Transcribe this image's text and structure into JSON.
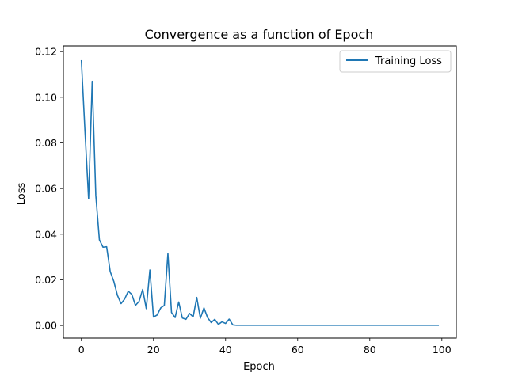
{
  "chart_data": {
    "type": "line",
    "title": "Convergence as a function of Epoch",
    "xlabel": "Epoch",
    "ylabel": "Loss",
    "xlim": [
      -5,
      104
    ],
    "ylim": [
      -0.0055,
      0.1225
    ],
    "xticks": [
      0,
      20,
      40,
      60,
      80,
      100
    ],
    "xtick_labels": [
      "0",
      "20",
      "40",
      "60",
      "80",
      "100"
    ],
    "yticks": [
      0.0,
      0.02,
      0.04,
      0.06,
      0.08,
      0.1,
      0.12
    ],
    "ytick_labels": [
      "0.00",
      "0.02",
      "0.04",
      "0.06",
      "0.08",
      "0.10",
      "0.12"
    ],
    "grid": false,
    "legend": "top-right",
    "series": [
      {
        "name": "Training Loss",
        "color": "#1f77b4",
        "x": [
          0,
          1,
          2,
          3,
          4,
          5,
          6,
          7,
          8,
          9,
          10,
          11,
          12,
          13,
          14,
          15,
          16,
          17,
          18,
          19,
          20,
          21,
          22,
          23,
          24,
          25,
          26,
          27,
          28,
          29,
          30,
          31,
          32,
          33,
          34,
          35,
          36,
          37,
          38,
          39,
          40,
          41,
          42,
          43,
          44,
          45,
          46,
          47,
          48,
          49,
          50,
          51,
          52,
          53,
          54,
          55,
          56,
          57,
          58,
          59,
          60,
          61,
          62,
          63,
          64,
          65,
          66,
          67,
          68,
          69,
          70,
          71,
          72,
          73,
          74,
          75,
          76,
          77,
          78,
          79,
          80,
          81,
          82,
          83,
          84,
          85,
          86,
          87,
          88,
          89,
          90,
          91,
          92,
          93,
          94,
          95,
          96,
          97,
          98,
          99
        ],
        "y": [
          0.116,
          0.085,
          0.0555,
          0.107,
          0.057,
          0.0375,
          0.0343,
          0.0345,
          0.0236,
          0.0193,
          0.0132,
          0.0096,
          0.0116,
          0.015,
          0.0136,
          0.0088,
          0.0106,
          0.0158,
          0.0074,
          0.0243,
          0.0037,
          0.0046,
          0.0077,
          0.0088,
          0.0315,
          0.0057,
          0.0035,
          0.0103,
          0.0033,
          0.0027,
          0.0053,
          0.0038,
          0.0123,
          0.0032,
          0.0077,
          0.0035,
          0.0013,
          0.0027,
          0.0005,
          0.0016,
          0.0009,
          0.0028,
          0.0003,
          0.0001,
          0.0001,
          0.0001,
          0.0001,
          0.0001,
          0.0001,
          0.0001,
          0.0001,
          0.0001,
          0.0001,
          0.0001,
          0.0001,
          0.0001,
          0.0001,
          0.0001,
          0.0001,
          0.0001,
          0.0001,
          0.0001,
          0.0001,
          0.0001,
          0.0001,
          0.0001,
          0.0001,
          0.0001,
          0.0001,
          0.0001,
          0.0001,
          0.0001,
          0.0001,
          0.0001,
          0.0001,
          0.0001,
          0.0001,
          0.0001,
          0.0001,
          0.0001,
          0.0001,
          0.0001,
          0.0001,
          0.0001,
          0.0001,
          0.0001,
          0.0001,
          0.0001,
          0.0001,
          0.0001,
          0.0001,
          0.0001,
          0.0001,
          0.0001,
          0.0001,
          0.0001,
          0.0001,
          0.0001,
          0.0001,
          0.0001
        ]
      }
    ]
  }
}
